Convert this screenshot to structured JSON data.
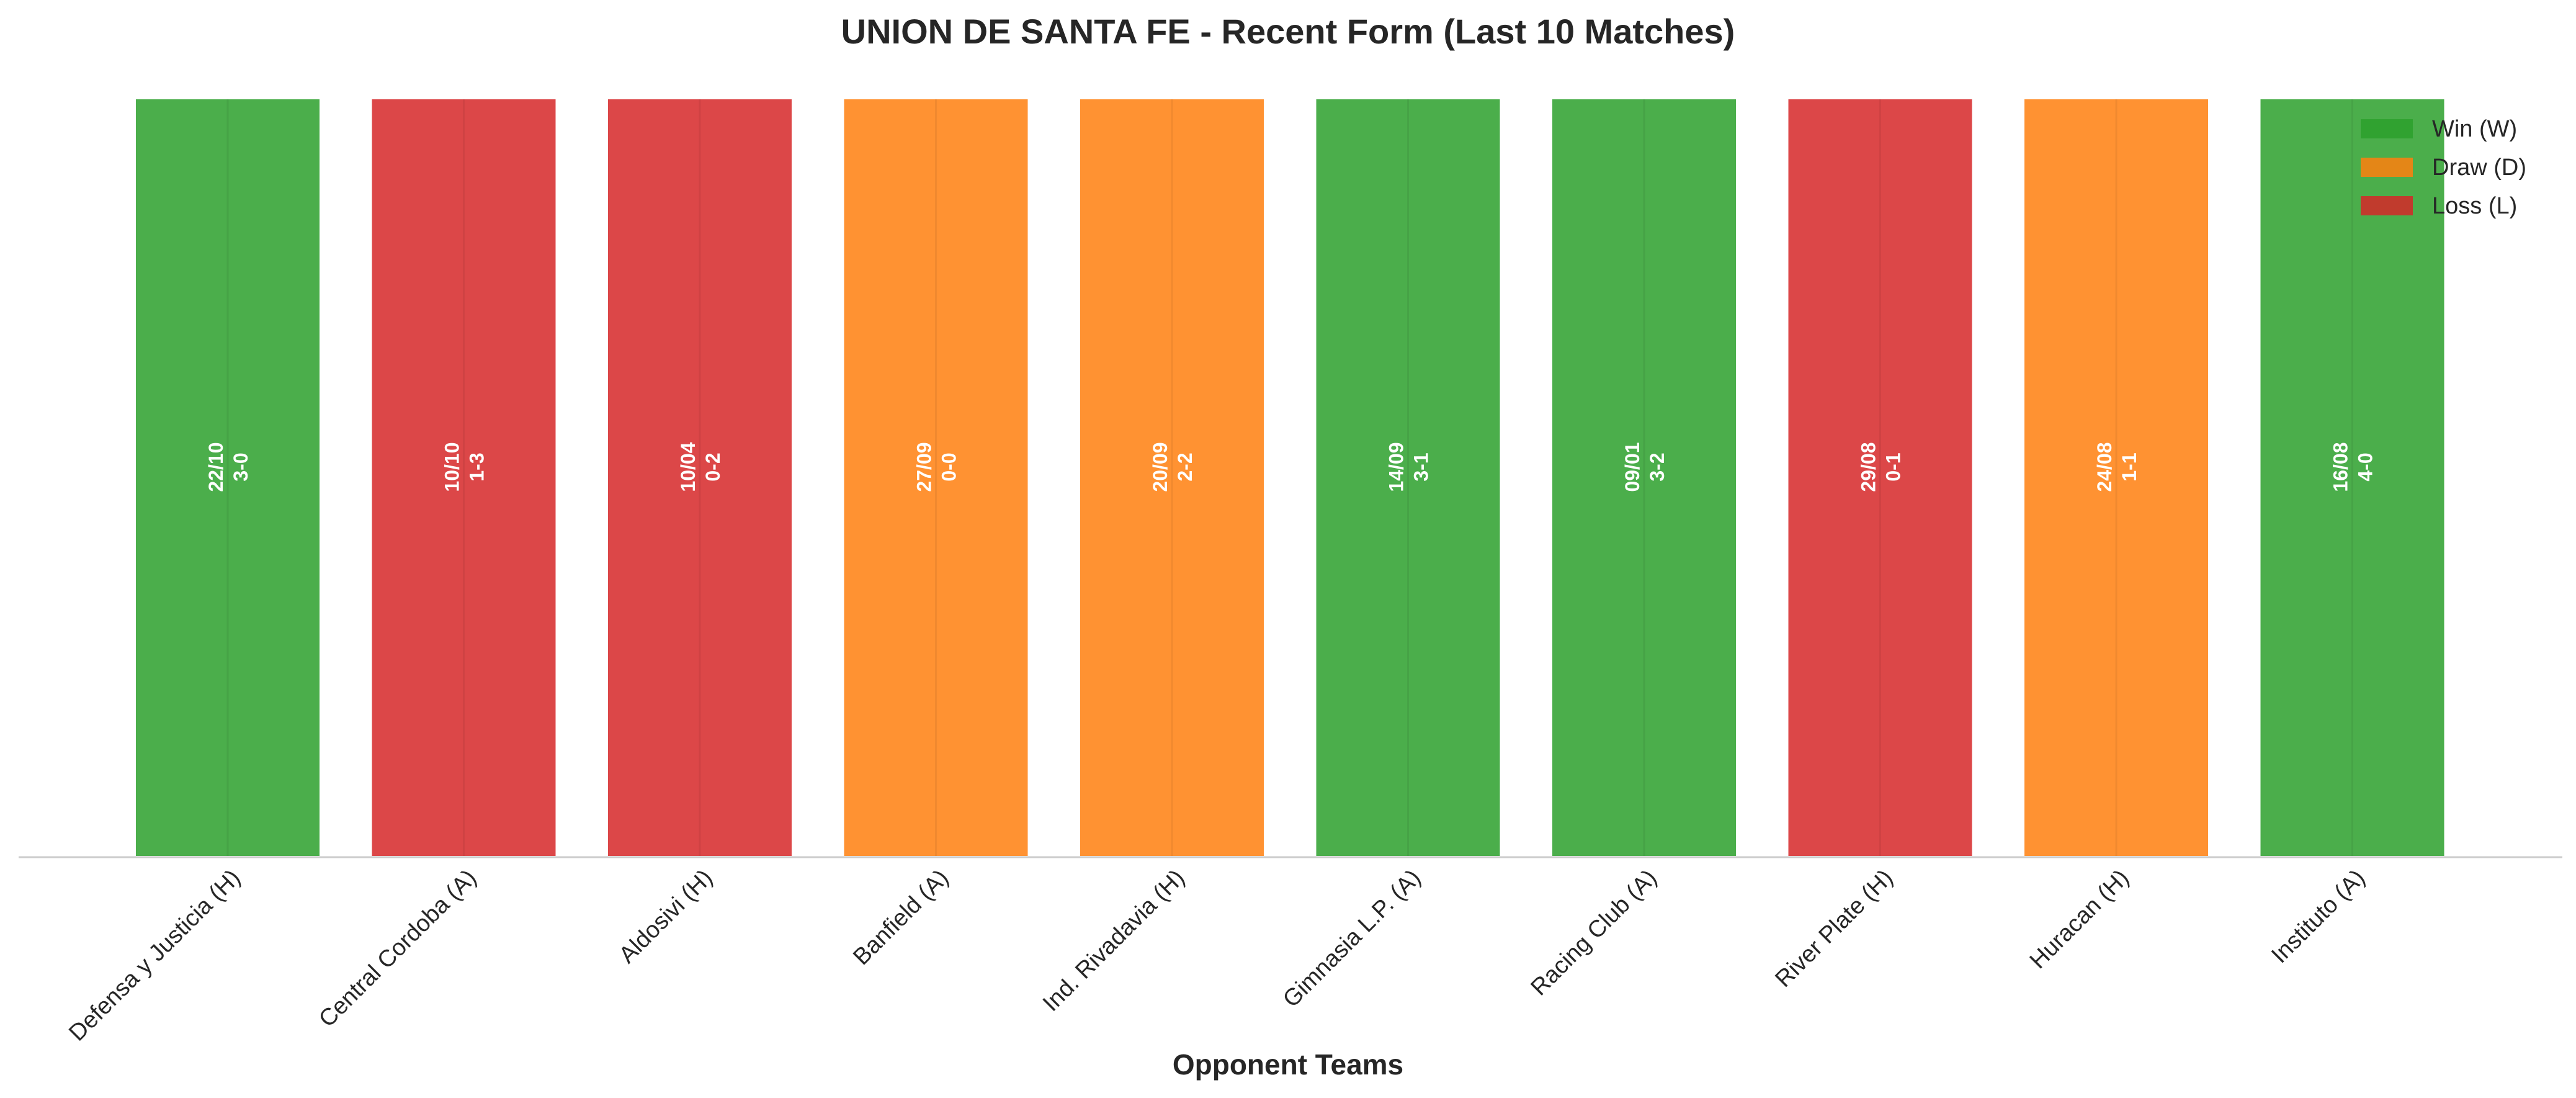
{
  "chart_data": {
    "type": "bar",
    "title": "UNION DE SANTA FE - Recent Form (Last 10 Matches)",
    "xlabel": "Opponent Teams",
    "ylabel": "",
    "categories": [
      "Defensa y Justicia (H)",
      "Central Cordoba (A)",
      "Aldosivi (H)",
      "Banfield (A)",
      "Ind. Rivadavia (H)",
      "Gimnasia L.P. (A)",
      "Racing Club (A)",
      "River Plate (H)",
      "Huracan (H)",
      "Instituto (A)"
    ],
    "values": [
      1,
      1,
      1,
      1,
      1,
      1,
      1,
      1,
      1,
      1
    ],
    "results": [
      "W",
      "L",
      "L",
      "D",
      "D",
      "W",
      "W",
      "L",
      "D",
      "W"
    ],
    "dates": [
      "22/10",
      "10/10",
      "10/04",
      "27/09",
      "20/09",
      "14/09",
      "09/01",
      "29/08",
      "24/08",
      "16/08"
    ],
    "scores": [
      "3-0",
      "1-3",
      "0-2",
      "0-0",
      "2-2",
      "3-1",
      "3-2",
      "0-1",
      "1-1",
      "4-0"
    ],
    "ylim": [
      0,
      1
    ],
    "grid": false,
    "legend_position": "top-right",
    "legend": [
      {
        "key": "W",
        "label": "Win (W)",
        "color": "#2ca02c"
      },
      {
        "key": "D",
        "label": "Draw (D)",
        "color": "#ff7f0e"
      },
      {
        "key": "L",
        "label": "Loss (L)",
        "color": "#d62728"
      }
    ],
    "colors": {
      "W": "#2ca02c",
      "D": "#ff7f0e",
      "L": "#d62728"
    }
  }
}
